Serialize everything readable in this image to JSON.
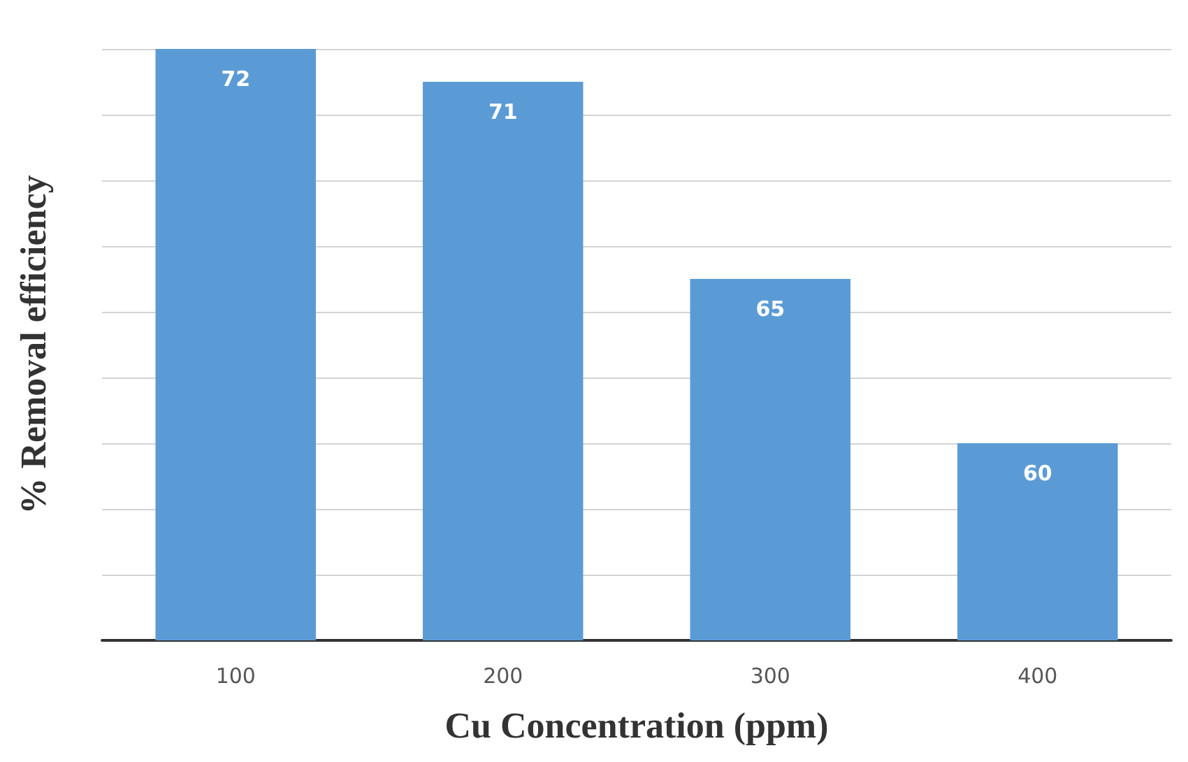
{
  "chart_data": {
    "type": "bar",
    "xlabel": "Cu Concentration (ppm)",
    "ylabel": "% Removal efficiency",
    "categories": [
      "100",
      "200",
      "300",
      "400"
    ],
    "values": [
      72,
      71,
      65,
      60
    ],
    "color": "#5b9bd5",
    "ylim": [
      54,
      72
    ],
    "yticks": [
      {
        "value": 54,
        "label": null
      },
      {
        "value": 56,
        "label": null
      },
      {
        "value": 58,
        "label": null
      },
      {
        "value": 60,
        "label": null
      },
      {
        "value": 62,
        "label": null
      },
      {
        "value": 64,
        "label": null
      },
      {
        "value": 66,
        "label": null
      },
      {
        "value": 68,
        "label": null
      },
      {
        "value": 70,
        "label": null
      },
      {
        "value": 72,
        "label": null
      }
    ],
    "grid": "y",
    "tick_labels": "x",
    "data_labels": true
  }
}
